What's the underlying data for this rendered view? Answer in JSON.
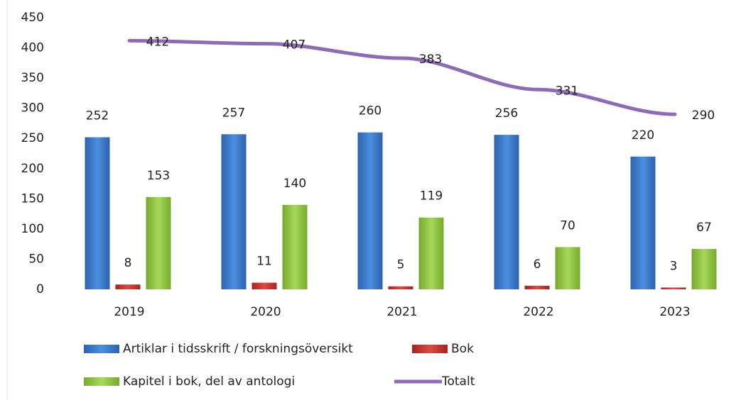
{
  "chart_data": {
    "type": "bar",
    "categories": [
      "2019",
      "2020",
      "2021",
      "2022",
      "2023"
    ],
    "series": [
      {
        "name": "Artiklar i tidsskrift / forskningsöversikt",
        "color": "#3b7bcb",
        "values": [
          252,
          257,
          260,
          256,
          220
        ]
      },
      {
        "name": "Bok",
        "color": "#c8322c",
        "values": [
          8,
          11,
          5,
          6,
          3
        ]
      },
      {
        "name": "Kapitel i bok, del av antologi",
        "color": "#8fc441",
        "values": [
          153,
          140,
          119,
          70,
          67
        ]
      },
      {
        "name": "Totalt",
        "color": "#8e6bb8",
        "type": "line",
        "values": [
          412,
          407,
          383,
          331,
          290
        ]
      }
    ],
    "ylim": [
      0,
      450
    ],
    "yticks": [
      0,
      50,
      100,
      150,
      200,
      250,
      300,
      350,
      400,
      450
    ]
  }
}
